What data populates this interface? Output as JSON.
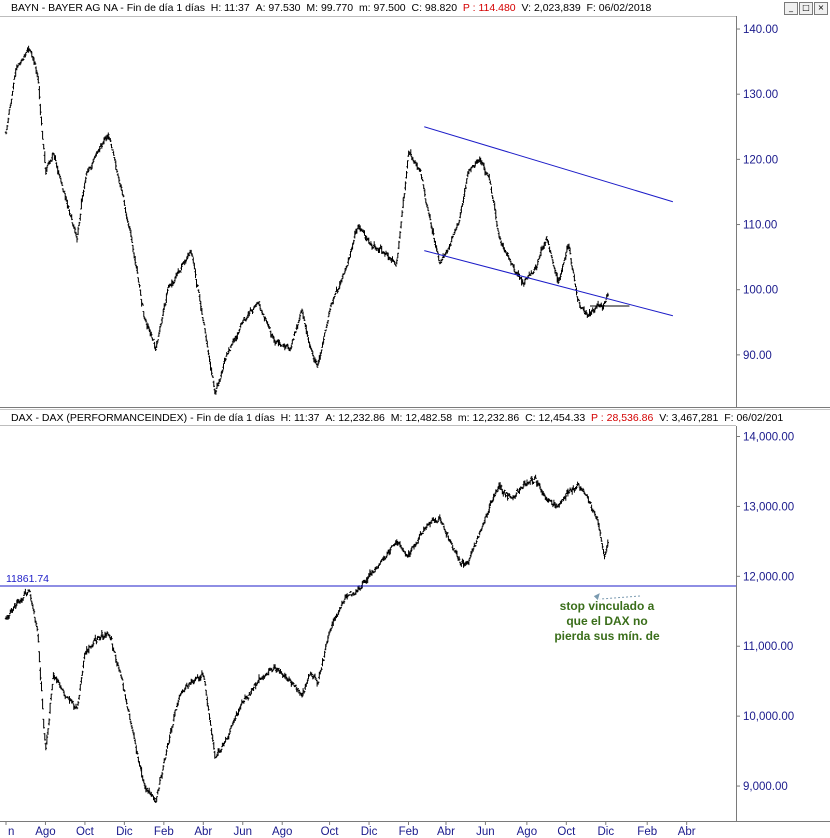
{
  "window_buttons": {
    "minimize": "_",
    "maximize": "□",
    "close": "×"
  },
  "chart_data": [
    {
      "type": "bar",
      "style": "ohlc",
      "title": "BAYN - BAYER AG  NA - Fin de día 1 días",
      "header": {
        "H_label": "H:",
        "H": "11:37",
        "A_label": "A:",
        "A": "97.530",
        "M_label": "M:",
        "M": "99.770",
        "m_label": "m:",
        "m": "97.500",
        "C_label": "C:",
        "C": "98.820",
        "P_label": "P :",
        "P": "114.480",
        "V_label": "V:",
        "V": "2,023,839",
        "F_label": "F:",
        "F": "06/02/2018"
      },
      "y_ticks": [
        "140.00",
        "130.00",
        "120.00",
        "110.00",
        "100.00",
        "90.00"
      ],
      "ylim": [
        82,
        142
      ],
      "x_range_index": [
        0,
        37
      ],
      "series_anchors_x_index": [
        0,
        0.5,
        1.2,
        1.6,
        2,
        2.4,
        3,
        3.6,
        4,
        4.6,
        5.2,
        5.8,
        6.4,
        7,
        7.6,
        8.2,
        8.8,
        9.4,
        10,
        10.6,
        11.2,
        12,
        12.8,
        13.6,
        14.4,
        15,
        15.4,
        15.8,
        16.5,
        17.2,
        17.8,
        18.4,
        19,
        19.8,
        20.4,
        21,
        21.6,
        22,
        22.5,
        23,
        23.4,
        24,
        24.5,
        25,
        25.6,
        26.2,
        26.8,
        27.4,
        28,
        28.5,
        29,
        29.5,
        30,
        30.3,
        30.5
      ],
      "series_anchors_y": [
        124,
        134,
        137,
        133,
        118,
        121,
        114,
        108,
        117,
        121,
        124,
        116,
        107,
        96,
        91,
        100,
        103,
        106,
        95,
        84,
        90,
        95,
        98,
        92,
        91,
        97,
        91,
        88,
        98,
        103,
        110,
        107,
        106,
        104,
        121,
        118,
        109,
        104,
        107,
        111,
        118,
        120,
        117,
        108,
        104,
        101,
        103,
        108,
        101,
        107,
        98,
        96,
        98,
        97.5,
        98.8
      ],
      "trendlines": [
        {
          "from": [
            21.2,
            125
          ],
          "to": [
            33.8,
            113.5
          ]
        },
        {
          "from": [
            21.2,
            106
          ],
          "to": [
            33.8,
            96
          ]
        }
      ],
      "support_segment": {
        "from": [
          29.6,
          97.5
        ],
        "to": [
          31.6,
          97.5
        ]
      }
    },
    {
      "type": "bar",
      "style": "ohlc",
      "title": "DAX - DAX (PERFORMANCEINDEX) - Fin de día 1 días",
      "header": {
        "H_label": "H:",
        "H": "11:37",
        "A_label": "A:",
        "A": "12,232.86",
        "M_label": "M:",
        "M": "12,482.58",
        "m_label": "m:",
        "m": "12,232.86",
        "C_label": "C:",
        "C": "12,454.33",
        "P_label": "P :",
        "P": "28,536.86",
        "V_label": "V:",
        "V": "3,467,281",
        "F_label": "F:",
        "F": "06/02/201"
      },
      "y_ticks": [
        "14,000.00",
        "13,000.00",
        "12,000.00",
        "11,000.00",
        "10,000.00",
        "9,000.00"
      ],
      "ylim": [
        8500,
        14150
      ],
      "x_range_index": [
        0,
        37
      ],
      "series_anchors_x_index": [
        0,
        0.5,
        1.2,
        1.6,
        2,
        2.4,
        3,
        3.6,
        4,
        4.6,
        5.2,
        5.8,
        6.4,
        7,
        7.6,
        8.2,
        8.8,
        9.4,
        10,
        10.6,
        11.2,
        12,
        12.8,
        13.6,
        14.4,
        15,
        15.4,
        15.8,
        16.5,
        17.2,
        17.8,
        18.4,
        19,
        19.8,
        20.4,
        21,
        21.6,
        22,
        22.5,
        23,
        23.4,
        24,
        24.5,
        25,
        25.6,
        26.2,
        26.8,
        27.4,
        28,
        28.5,
        29,
        29.5,
        30,
        30.3,
        30.5
      ],
      "series_anchors_y": [
        11400,
        11600,
        11800,
        11200,
        9500,
        10600,
        10300,
        10100,
        10900,
        11100,
        11200,
        10600,
        9800,
        9000,
        8800,
        9600,
        10300,
        10500,
        10600,
        9400,
        9700,
        10200,
        10500,
        10700,
        10500,
        10300,
        10600,
        10500,
        11300,
        11700,
        11800,
        12000,
        12200,
        12500,
        12300,
        12600,
        12800,
        12800,
        12500,
        12200,
        12200,
        12600,
        13000,
        13300,
        13100,
        13300,
        13400,
        13100,
        13000,
        13200,
        13300,
        13100,
        12800,
        12300,
        12454
      ],
      "hline": {
        "label": "11861.74",
        "value": 11861.74
      },
      "annotation": {
        "lines": [
          "stop vinculado a",
          "que el DAX no",
          "pierda sus mín. de"
        ],
        "arrow_to": [
          30.3,
          11760
        ]
      }
    }
  ],
  "x_axis": {
    "labels": [
      "n",
      "Ago",
      "Oct",
      "Dic",
      "Feb",
      "Abr",
      "Jun",
      "Ago",
      "Oct",
      "Dic",
      "Feb",
      "Abr",
      "Jun",
      "Ago",
      "Oct",
      "Dic",
      "Feb",
      "Abr"
    ],
    "label_index": [
      0,
      2,
      4,
      6,
      8,
      10,
      12,
      14,
      16.4,
      18.4,
      20.4,
      22.3,
      24.3,
      26.4,
      28.4,
      30.4,
      32.5,
      34.5
    ]
  }
}
